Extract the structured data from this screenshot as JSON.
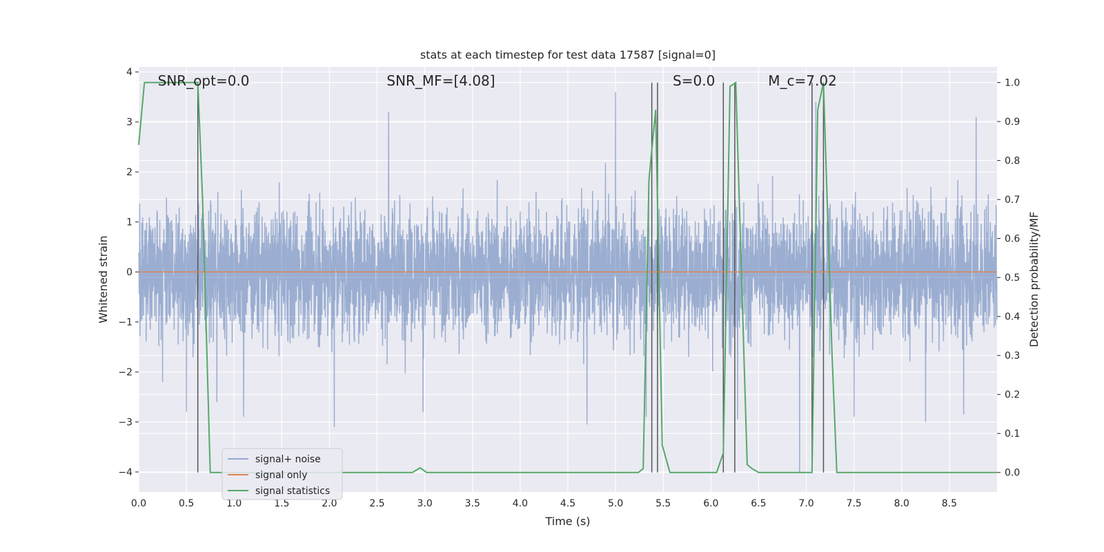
{
  "chart_data": {
    "type": "line",
    "title": "stats at each timestep for test data 17587 [signal=0]",
    "xlabel": "Time (s)",
    "ylabel": "Whitened strain",
    "y2label": "Detection probability/MF",
    "xlim": [
      0,
      9.0
    ],
    "ylim": [
      -4.4,
      4.1
    ],
    "y2lim": [
      -0.05,
      1.04
    ],
    "x_ticks": [
      0.0,
      0.5,
      1.0,
      1.5,
      2.0,
      2.5,
      3.0,
      3.5,
      4.0,
      4.5,
      5.0,
      5.5,
      6.0,
      6.5,
      7.0,
      7.5,
      8.0,
      8.5
    ],
    "x_tick_labels": [
      "0.0",
      "0.5",
      "1.0",
      "1.5",
      "2.0",
      "2.5",
      "3.0",
      "3.5",
      "4.0",
      "4.5",
      "5.0",
      "5.5",
      "6.0",
      "6.5",
      "7.0",
      "7.5",
      "8.0",
      "8.5"
    ],
    "y_ticks": [
      -4,
      -3,
      -2,
      -1,
      0,
      1,
      2,
      3,
      4
    ],
    "y_tick_labels": [
      "−4",
      "−3",
      "−2",
      "−1",
      "0",
      "1",
      "2",
      "3",
      "4"
    ],
    "y2_ticks": [
      0.0,
      0.1,
      0.2,
      0.3,
      0.4,
      0.5,
      0.6,
      0.7,
      0.8,
      0.9,
      1.0
    ],
    "y2_tick_labels": [
      "0.0",
      "0.1",
      "0.2",
      "0.3",
      "0.4",
      "0.5",
      "0.6",
      "0.7",
      "0.8",
      "0.9",
      "1.0"
    ],
    "grid": true,
    "legend_position": "lower-left",
    "annotations": [
      {
        "text": "SNR_opt=0.0",
        "x": 0.2
      },
      {
        "text": "SNR_MF=[4.08]",
        "x": 2.6
      },
      {
        "text": "S=0.0",
        "x": 5.6
      },
      {
        "text": "M_c=7.02",
        "x": 6.6
      }
    ],
    "series": [
      {
        "name": "signal+ noise",
        "color": "#4c72b0",
        "axis": "left",
        "kind": "noise",
        "amplitude_rms": 1.0,
        "extremes": [
          {
            "x": 0.25,
            "y": -2.2
          },
          {
            "x": 0.5,
            "y": -2.8
          },
          {
            "x": 0.82,
            "y": -2.6
          },
          {
            "x": 1.1,
            "y": -2.9
          },
          {
            "x": 2.05,
            "y": -3.1
          },
          {
            "x": 2.62,
            "y": 3.2
          },
          {
            "x": 2.98,
            "y": -2.8
          },
          {
            "x": 4.7,
            "y": -3.05
          },
          {
            "x": 5.0,
            "y": 3.6
          },
          {
            "x": 5.32,
            "y": -2.9
          },
          {
            "x": 6.28,
            "y": -2.95
          },
          {
            "x": 6.93,
            "y": -4.0
          },
          {
            "x": 7.1,
            "y": 3.4
          },
          {
            "x": 7.5,
            "y": -2.9
          },
          {
            "x": 8.25,
            "y": -3.0
          },
          {
            "x": 8.78,
            "y": 3.1
          },
          {
            "x": 8.65,
            "y": -2.85
          }
        ]
      },
      {
        "name": "signal only",
        "color": "#dd8452",
        "axis": "left",
        "x": [
          0,
          9.0
        ],
        "y": [
          0,
          0
        ]
      },
      {
        "name": "signal statistics",
        "color": "#55a868",
        "axis": "right",
        "x": [
          0,
          0.06,
          0.1,
          0.2,
          0.3,
          0.4,
          0.5,
          0.6,
          0.62,
          0.67,
          0.75,
          1.0,
          1.5,
          2.0,
          2.5,
          2.87,
          2.95,
          3.02,
          3.5,
          4.0,
          4.5,
          5.0,
          5.24,
          5.29,
          5.35,
          5.42,
          5.49,
          5.57,
          5.7,
          6.0,
          6.06,
          6.13,
          6.2,
          6.26,
          6.38,
          6.43,
          6.5,
          6.7,
          7.0,
          7.06,
          7.12,
          7.18,
          7.27,
          7.32,
          7.4,
          7.7,
          7.8,
          8.0,
          8.5,
          9.0
        ],
        "y": [
          0.84,
          1.0,
          1.0,
          1.0,
          1.0,
          1.0,
          1.0,
          1.0,
          1.0,
          0.7,
          0.0,
          0.0,
          0.0,
          0.0,
          0.0,
          0.0,
          0.012,
          0.0,
          0.0,
          0.0,
          0.0,
          0.0,
          0.0,
          0.01,
          0.75,
          0.93,
          0.07,
          0.0,
          0.0,
          0.0,
          0.0,
          0.05,
          0.99,
          1.0,
          0.02,
          0.01,
          0.0,
          0.0,
          0.0,
          0.0,
          0.93,
          1.0,
          0.3,
          0.0,
          0.0,
          0.0,
          0.0,
          0.0,
          0.0,
          0.0
        ]
      }
    ],
    "vertical_lines": [
      {
        "x": 0.62,
        "y2_top": 1.0
      },
      {
        "x": 5.38,
        "y2_top": 1.0
      },
      {
        "x": 5.44,
        "y2_top": 1.0
      },
      {
        "x": 6.13,
        "y2_top": 1.0
      },
      {
        "x": 6.25,
        "y2_top": 1.0
      },
      {
        "x": 7.06,
        "y2_top": 1.0
      },
      {
        "x": 7.18,
        "y2_top": 1.0
      }
    ],
    "background_color": "#eaeaf2",
    "grid_color": "#ffffff",
    "vline_color": "#555555"
  }
}
